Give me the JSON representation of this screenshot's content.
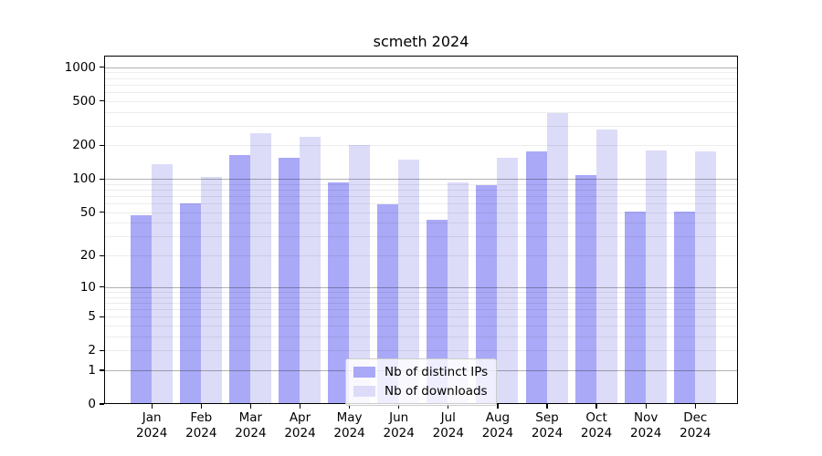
{
  "title": "scmeth 2024",
  "chart_data": {
    "type": "bar",
    "title": "scmeth 2024",
    "xlabel": "",
    "ylabel": "",
    "scale": "log1p",
    "grid": true,
    "legend_position": "lower center",
    "ylim": [
      0,
      1260
    ],
    "yticks": [
      1000,
      500,
      200,
      100,
      50,
      20,
      10,
      5,
      2,
      1,
      0
    ],
    "categories": [
      "Jan",
      "Feb",
      "Mar",
      "Apr",
      "May",
      "Jun",
      "Jul",
      "Aug",
      "Sep",
      "Oct",
      "Nov",
      "Dec"
    ],
    "x_year": "2024",
    "series": [
      {
        "name": "Nb of distinct IPs",
        "color": "#a9a9f7",
        "values": [
          47,
          60,
          165,
          155,
          94,
          59,
          43,
          88,
          178,
          109,
          51,
          51
        ]
      },
      {
        "name": "Nb of downloads",
        "color": "#dcdcf8",
        "values": [
          135,
          104,
          260,
          240,
          200,
          150,
          94,
          156,
          387,
          280,
          179,
          178
        ]
      }
    ]
  },
  "colors": {
    "background": "#ffffff",
    "major_grid": "#b3b3b3",
    "minor_grid": "#ebebeb",
    "axis": "#000000",
    "legend_border": "#cccccc"
  }
}
